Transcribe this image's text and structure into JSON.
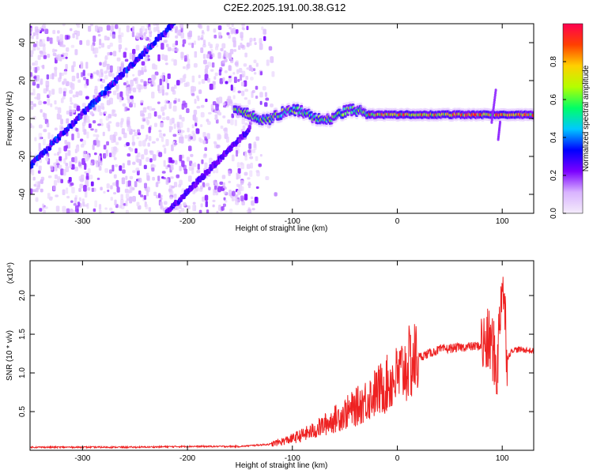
{
  "chart_data": [
    {
      "type": "heatmap",
      "title": "C2E2.2025.191.00.38.G12",
      "xlabel": "Height of straight line (km)",
      "ylabel": "Frequency (Hz)",
      "xlim": [
        -350,
        130
      ],
      "ylim": [
        -50,
        50
      ],
      "x_ticks": [
        -300,
        -200,
        -100,
        0,
        100
      ],
      "y_ticks": [
        -40,
        -20,
        0,
        20,
        40
      ],
      "colorbar": {
        "label": "Normalized spectral amplitude",
        "range": [
          0.0,
          1.0
        ],
        "ticks": [
          "0.0",
          "0.2",
          "0.4",
          "0.6",
          "0.8"
        ],
        "colors": [
          "#f4ecfb",
          "#d9b3ff",
          "#7b00ff",
          "#0000ff",
          "#00c8ff",
          "#00ff66",
          "#b4ff00",
          "#ffd000",
          "#ff4000",
          "#ff0050"
        ]
      },
      "features": {
        "diagonal_band_1": {
          "x": [
            -350,
            -210
          ],
          "y": [
            -25,
            52
          ]
        },
        "diagonal_band_2": {
          "x": [
            -220,
            -140
          ],
          "y": [
            -50,
            -5
          ]
        },
        "stable_band": {
          "x": [
            -155,
            130
          ],
          "y": 2
        }
      }
    },
    {
      "type": "line",
      "xlabel": "Height of straight line (km)",
      "ylabel": "SNR (10 * v/v)",
      "y_multiplier": "(x10⁴)",
      "xlim": [
        -350,
        130
      ],
      "ylim": [
        0,
        2.45
      ],
      "x_ticks": [
        -300,
        -200,
        -100,
        0,
        100
      ],
      "y_ticks": [
        "0.5",
        "1.0",
        "1.5",
        "2.0"
      ],
      "series_color": "#ee2222",
      "series": [
        {
          "x": [
            -350,
            -300,
            -250,
            -200,
            -150,
            -120,
            -100,
            -80,
            -60,
            -40,
            -20,
            0,
            10,
            20,
            30,
            40,
            60,
            80,
            90,
            95,
            100,
            105,
            110,
            120,
            130
          ],
          "values": [
            0.04,
            0.04,
            0.04,
            0.05,
            0.05,
            0.08,
            0.15,
            0.25,
            0.4,
            0.55,
            0.75,
            0.95,
            1.1,
            1.2,
            1.25,
            1.3,
            1.33,
            1.35,
            1.4,
            1.0,
            2.3,
            1.2,
            1.3,
            1.3,
            1.28
          ]
        }
      ]
    }
  ]
}
